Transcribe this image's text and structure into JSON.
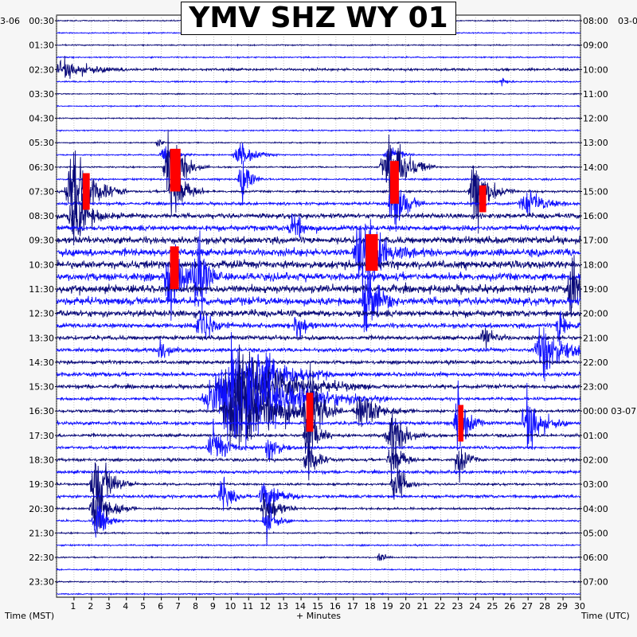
{
  "title": "YMV SHZ WY 01",
  "date_left": "3-06",
  "date_right": "03-0",
  "x_label_left": "Time (MST)",
  "x_label_center": "+ Minutes",
  "x_label_right": "Time (UTC)",
  "colors": {
    "background": "#f6f6f6",
    "title_bg": "#ffffff",
    "trace_dark": "#0a0a7a",
    "trace_blue": "#1010ff",
    "clip": "#ff0000",
    "grid": "#888888"
  },
  "chart_data": {
    "type": "helicorder",
    "station": "YMV",
    "channel": "SHZ",
    "network": "WY",
    "location": "01",
    "minutes_per_line": 30,
    "lines": 48,
    "x_ticks": [
      1,
      2,
      3,
      4,
      5,
      6,
      7,
      8,
      9,
      10,
      11,
      12,
      13,
      14,
      15,
      16,
      17,
      18,
      19,
      20,
      21,
      22,
      23,
      24,
      25,
      26,
      27,
      28,
      29,
      30
    ],
    "xlim": [
      0,
      30
    ],
    "left_hour_labels": [
      "00:30",
      "01:30",
      "02:30",
      "03:30",
      "04:30",
      "05:30",
      "06:30",
      "07:30",
      "08:30",
      "09:30",
      "10:30",
      "11:30",
      "12:30",
      "13:30",
      "14:30",
      "15:30",
      "16:30",
      "17:30",
      "18:30",
      "19:30",
      "20:30",
      "21:30",
      "22:30",
      "23:30"
    ],
    "right_hour_labels": [
      "08:00",
      "09:00",
      "10:00",
      "11:00",
      "12:00",
      "13:00",
      "14:00",
      "15:00",
      "16:00",
      "17:00",
      "18:00",
      "19:00",
      "20:00",
      "21:00",
      "22:00",
      "23:00",
      "00:00 03-07",
      "01:00",
      "02:00",
      "03:00",
      "04:00",
      "05:00",
      "06:00",
      "07:00"
    ],
    "line_activity": [
      0.05,
      0.05,
      0.06,
      0.08,
      0.25,
      0.1,
      0.05,
      0.05,
      0.06,
      0.07,
      0.06,
      0.08,
      0.1,
      0.15,
      0.2,
      0.3,
      0.6,
      0.7,
      0.9,
      1.0,
      1.0,
      1.0,
      1.0,
      1.0,
      0.85,
      0.6,
      0.5,
      0.45,
      0.4,
      0.5,
      0.45,
      0.3,
      0.35,
      0.4,
      0.35,
      0.3,
      0.3,
      0.35,
      0.2,
      0.35,
      0.2,
      0.15,
      0.1,
      0.1,
      0.08,
      0.08,
      0.07,
      0.07
    ],
    "events": [
      {
        "line": 4,
        "minute": 0.5,
        "amplitude": 0.7,
        "duration": 3.0
      },
      {
        "line": 5,
        "minute": 25.5,
        "amplitude": 0.4,
        "duration": 0.5
      },
      {
        "line": 10,
        "minute": 5.8,
        "amplitude": 0.5,
        "duration": 0.4
      },
      {
        "line": 11,
        "minute": 6.2,
        "amplitude": 0.8,
        "duration": 1.2
      },
      {
        "line": 11,
        "minute": 10.5,
        "amplitude": 1.0,
        "duration": 1.5
      },
      {
        "line": 11,
        "minute": 19.0,
        "amplitude": 1.2,
        "duration": 1.0
      },
      {
        "line": 12,
        "minute": 19.0,
        "amplitude": 3.5,
        "duration": 1.8
      },
      {
        "line": 12,
        "minute": 6.5,
        "amplitude": 3.0,
        "duration": 1.5
      },
      {
        "line": 13,
        "minute": 10.6,
        "amplitude": 2.5,
        "duration": 0.8
      },
      {
        "line": 14,
        "minute": 1.0,
        "amplitude": 4.0,
        "duration": 2.0
      },
      {
        "line": 14,
        "minute": 24.0,
        "amplitude": 3.0,
        "duration": 1.5
      },
      {
        "line": 14,
        "minute": 6.7,
        "amplitude": 3.2,
        "duration": 1.2
      },
      {
        "line": 15,
        "minute": 19.3,
        "amplitude": 3.0,
        "duration": 1.2
      },
      {
        "line": 15,
        "minute": 27.0,
        "amplitude": 1.0,
        "duration": 2.0
      },
      {
        "line": 16,
        "minute": 1.0,
        "amplitude": 2.5,
        "duration": 1.5
      },
      {
        "line": 17,
        "minute": 13.5,
        "amplitude": 1.5,
        "duration": 1.0
      },
      {
        "line": 19,
        "minute": 17.5,
        "amplitude": 3.5,
        "duration": 2.0
      },
      {
        "line": 21,
        "minute": 6.5,
        "amplitude": 4.0,
        "duration": 1.2
      },
      {
        "line": 21,
        "minute": 8.0,
        "amplitude": 3.5,
        "duration": 1.0
      },
      {
        "line": 22,
        "minute": 29.5,
        "amplitude": 3.0,
        "duration": 1.0
      },
      {
        "line": 23,
        "minute": 17.8,
        "amplitude": 3.0,
        "duration": 1.2
      },
      {
        "line": 25,
        "minute": 8.3,
        "amplitude": 2.0,
        "duration": 1.2
      },
      {
        "line": 25,
        "minute": 13.8,
        "amplitude": 1.6,
        "duration": 0.8
      },
      {
        "line": 25,
        "minute": 28.8,
        "amplitude": 1.8,
        "duration": 0.8
      },
      {
        "line": 26,
        "minute": 24.5,
        "amplitude": 1.0,
        "duration": 1.0
      },
      {
        "line": 27,
        "minute": 6.0,
        "amplitude": 1.0,
        "duration": 1.0
      },
      {
        "line": 27,
        "minute": 27.9,
        "amplitude": 2.5,
        "duration": 2.0
      },
      {
        "line": 29,
        "minute": 11.5,
        "amplitude": 2.5,
        "duration": 3.0
      },
      {
        "line": 30,
        "minute": 10.5,
        "amplitude": 3.0,
        "duration": 5.0
      },
      {
        "line": 31,
        "minute": 10.0,
        "amplitude": 4.0,
        "duration": 6.0
      },
      {
        "line": 32,
        "minute": 10.5,
        "amplitude": 3.5,
        "duration": 4.0
      },
      {
        "line": 32,
        "minute": 14.4,
        "amplitude": 3.5,
        "duration": 1.2
      },
      {
        "line": 32,
        "minute": 17.5,
        "amplitude": 1.5,
        "duration": 2.0
      },
      {
        "line": 33,
        "minute": 23.0,
        "amplitude": 3.0,
        "duration": 1.0
      },
      {
        "line": 33,
        "minute": 27.0,
        "amplitude": 2.5,
        "duration": 1.5
      },
      {
        "line": 34,
        "minute": 14.4,
        "amplitude": 3.0,
        "duration": 1.0
      },
      {
        "line": 34,
        "minute": 19.2,
        "amplitude": 2.0,
        "duration": 1.5
      },
      {
        "line": 35,
        "minute": 9.0,
        "amplitude": 1.5,
        "duration": 1.5
      },
      {
        "line": 35,
        "minute": 12.2,
        "amplitude": 1.5,
        "duration": 1.0
      },
      {
        "line": 36,
        "minute": 14.4,
        "amplitude": 2.0,
        "duration": 1.0
      },
      {
        "line": 36,
        "minute": 19.2,
        "amplitude": 2.5,
        "duration": 1.0
      },
      {
        "line": 36,
        "minute": 23.0,
        "amplitude": 2.0,
        "duration": 0.8
      },
      {
        "line": 38,
        "minute": 2.3,
        "amplitude": 3.0,
        "duration": 1.5
      },
      {
        "line": 38,
        "minute": 19.4,
        "amplitude": 2.0,
        "duration": 1.0
      },
      {
        "line": 39,
        "minute": 12.0,
        "amplitude": 1.5,
        "duration": 1.5
      },
      {
        "line": 39,
        "minute": 9.5,
        "amplitude": 1.5,
        "duration": 1.0
      },
      {
        "line": 40,
        "minute": 2.3,
        "amplitude": 2.5,
        "duration": 1.5
      },
      {
        "line": 40,
        "minute": 12.0,
        "amplitude": 2.0,
        "duration": 1.2
      },
      {
        "line": 41,
        "minute": 2.3,
        "amplitude": 2.0,
        "duration": 1.0
      },
      {
        "line": 41,
        "minute": 12.0,
        "amplitude": 1.5,
        "duration": 1.0
      },
      {
        "line": 44,
        "minute": 18.5,
        "amplitude": 0.6,
        "duration": 0.5
      }
    ],
    "clipped_segments": [
      {
        "line": 11,
        "minute": 6.5,
        "width": 0.6,
        "height_lines": 3.5
      },
      {
        "line": 12,
        "minute": 19.1,
        "width": 0.5,
        "height_lines": 3.5
      },
      {
        "line": 13,
        "minute": 1.5,
        "width": 0.4,
        "height_lines": 3.0
      },
      {
        "line": 14,
        "minute": 24.2,
        "width": 0.4,
        "height_lines": 2.2
      },
      {
        "line": 18,
        "minute": 17.7,
        "width": 0.7,
        "height_lines": 3.0
      },
      {
        "line": 19,
        "minute": 6.5,
        "width": 0.5,
        "height_lines": 3.5
      },
      {
        "line": 31,
        "minute": 14.3,
        "width": 0.4,
        "height_lines": 3.2
      },
      {
        "line": 32,
        "minute": 23.0,
        "width": 0.3,
        "height_lines": 3.0
      }
    ]
  }
}
